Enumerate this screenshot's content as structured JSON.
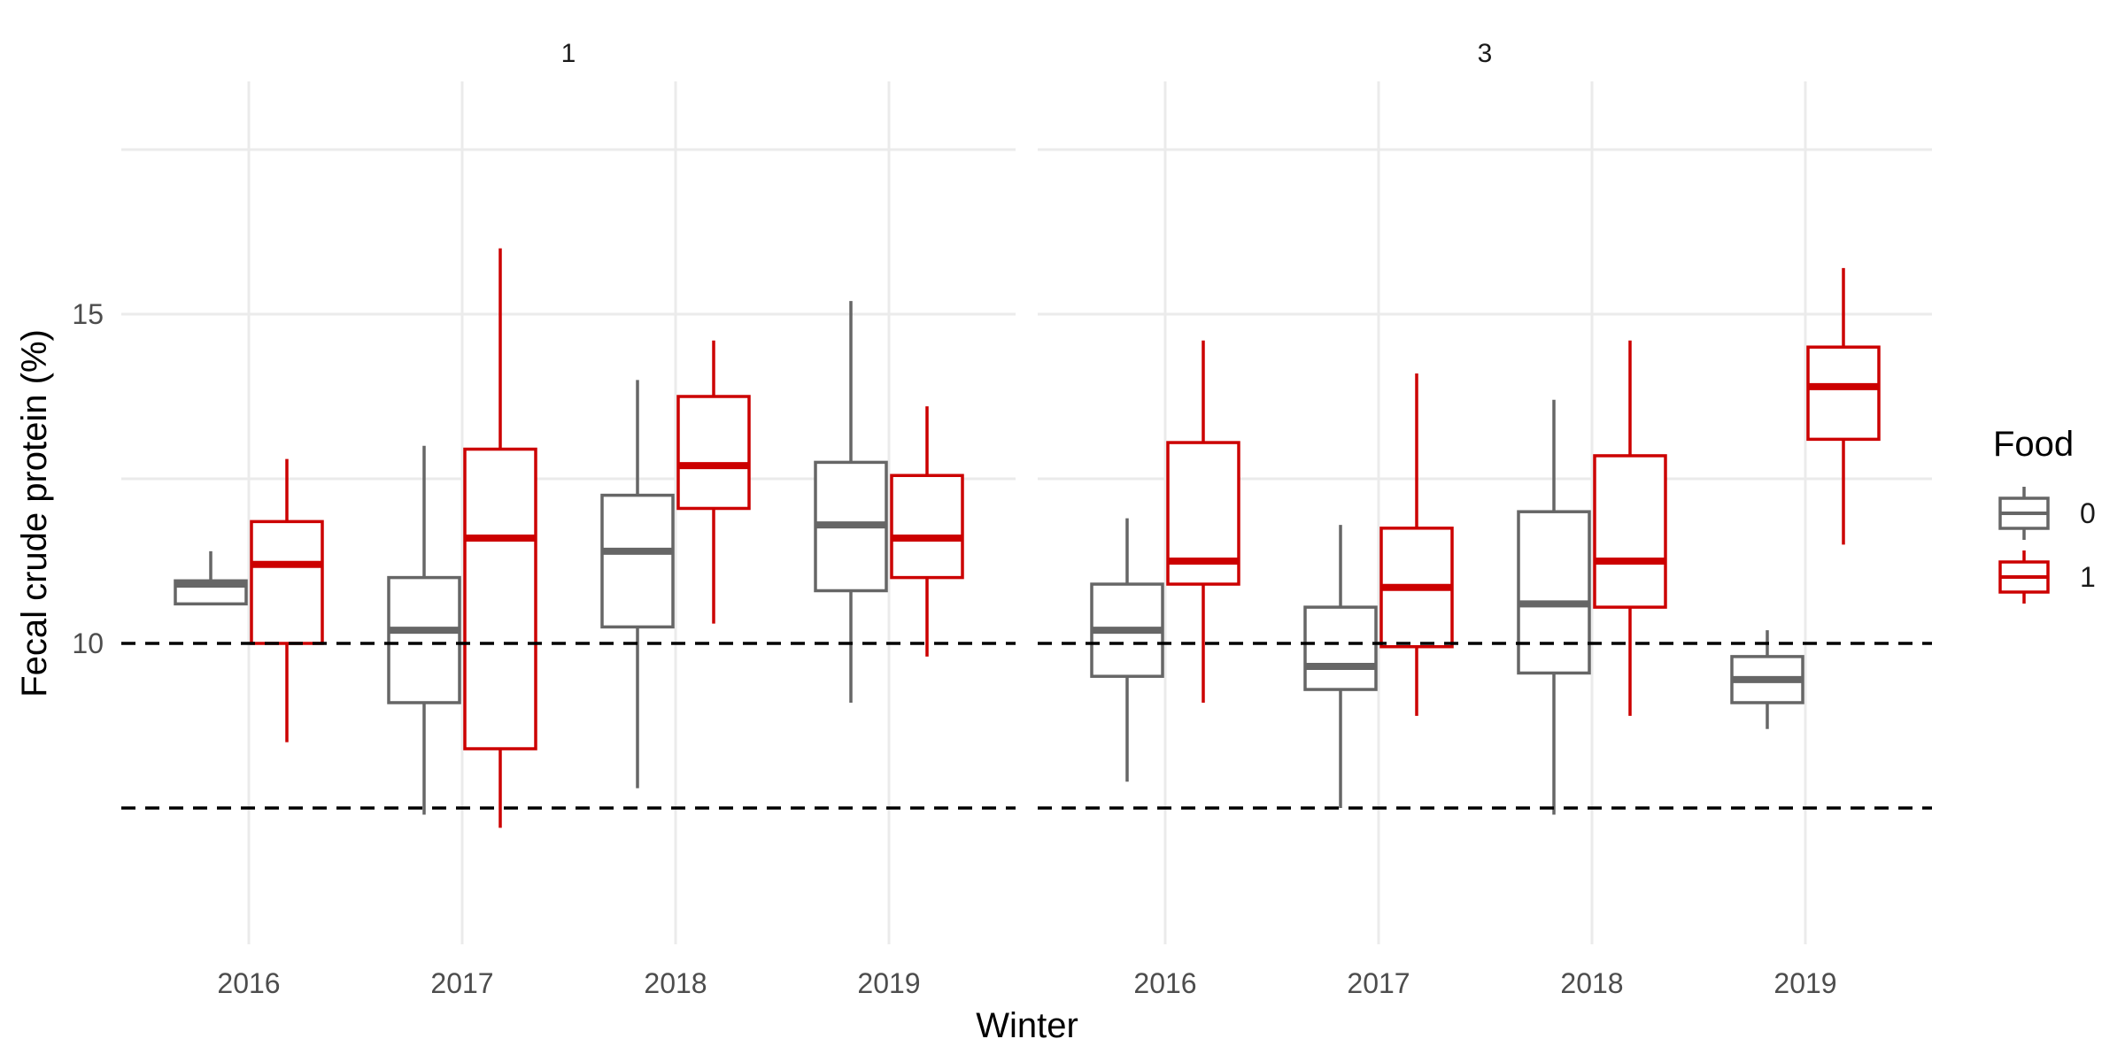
{
  "chart_data": {
    "type": "boxplot",
    "xlabel": "Winter",
    "ylabel": "Fecal crude protein (%)",
    "ylim": [
      5.5,
      17.5
    ],
    "yticks": [
      10,
      15
    ],
    "gridlines_y": [
      12.5,
      15,
      17.5
    ],
    "grid": true,
    "categories": [
      "2016",
      "2017",
      "2018",
      "2019"
    ],
    "reference_lines": [
      {
        "y": 10,
        "style": "dashed"
      },
      {
        "y": 7.5,
        "style": "dashed"
      }
    ],
    "legend": {
      "title": "Food",
      "position": "right",
      "entries": [
        {
          "label": "0",
          "color": "#666666"
        },
        {
          "label": "1",
          "color": "#cc0000"
        }
      ]
    },
    "panels": [
      {
        "label": "1",
        "groups": [
          {
            "category": "2016",
            "food": "0",
            "min": 10.6,
            "q1": 10.6,
            "median": 10.9,
            "q3": 10.95,
            "max": 11.4
          },
          {
            "category": "2016",
            "food": "1",
            "min": 8.5,
            "q1": 10.0,
            "median": 11.2,
            "q3": 11.85,
            "max": 12.8
          },
          {
            "category": "2017",
            "food": "0",
            "min": 7.4,
            "q1": 9.1,
            "median": 10.2,
            "q3": 11.0,
            "max": 13.0
          },
          {
            "category": "2017",
            "food": "1",
            "min": 7.2,
            "q1": 8.4,
            "median": 11.6,
            "q3": 12.95,
            "max": 16.0
          },
          {
            "category": "2018",
            "food": "0",
            "min": 7.8,
            "q1": 10.25,
            "median": 11.4,
            "q3": 12.25,
            "max": 14.0
          },
          {
            "category": "2018",
            "food": "1",
            "min": 10.3,
            "q1": 12.05,
            "median": 12.7,
            "q3": 13.75,
            "max": 14.6
          },
          {
            "category": "2019",
            "food": "0",
            "min": 9.1,
            "q1": 10.8,
            "median": 11.8,
            "q3": 12.75,
            "max": 15.2
          },
          {
            "category": "2019",
            "food": "1",
            "min": 9.8,
            "q1": 11.0,
            "median": 11.6,
            "q3": 12.55,
            "max": 13.6
          }
        ]
      },
      {
        "label": "3",
        "groups": [
          {
            "category": "2016",
            "food": "0",
            "min": 7.9,
            "q1": 9.5,
            "median": 10.2,
            "q3": 10.9,
            "max": 11.9
          },
          {
            "category": "2016",
            "food": "1",
            "min": 9.1,
            "q1": 10.9,
            "median": 11.25,
            "q3": 13.05,
            "max": 14.6
          },
          {
            "category": "2017",
            "food": "0",
            "min": 7.5,
            "q1": 9.3,
            "median": 9.65,
            "q3": 10.55,
            "max": 11.8
          },
          {
            "category": "2017",
            "food": "1",
            "min": 8.9,
            "q1": 9.95,
            "median": 10.85,
            "q3": 11.75,
            "max": 14.1
          },
          {
            "category": "2018",
            "food": "0",
            "min": 7.4,
            "q1": 9.55,
            "median": 10.6,
            "q3": 12.0,
            "max": 13.7
          },
          {
            "category": "2018",
            "food": "1",
            "min": 8.9,
            "q1": 10.55,
            "median": 11.25,
            "q3": 12.85,
            "max": 14.6
          },
          {
            "category": "2019",
            "food": "0",
            "min": 8.7,
            "q1": 9.1,
            "median": 9.45,
            "q3": 9.8,
            "max": 10.2
          },
          {
            "category": "2019",
            "food": "1",
            "min": 11.5,
            "q1": 13.1,
            "median": 13.9,
            "q3": 14.5,
            "max": 15.7
          }
        ]
      }
    ]
  }
}
